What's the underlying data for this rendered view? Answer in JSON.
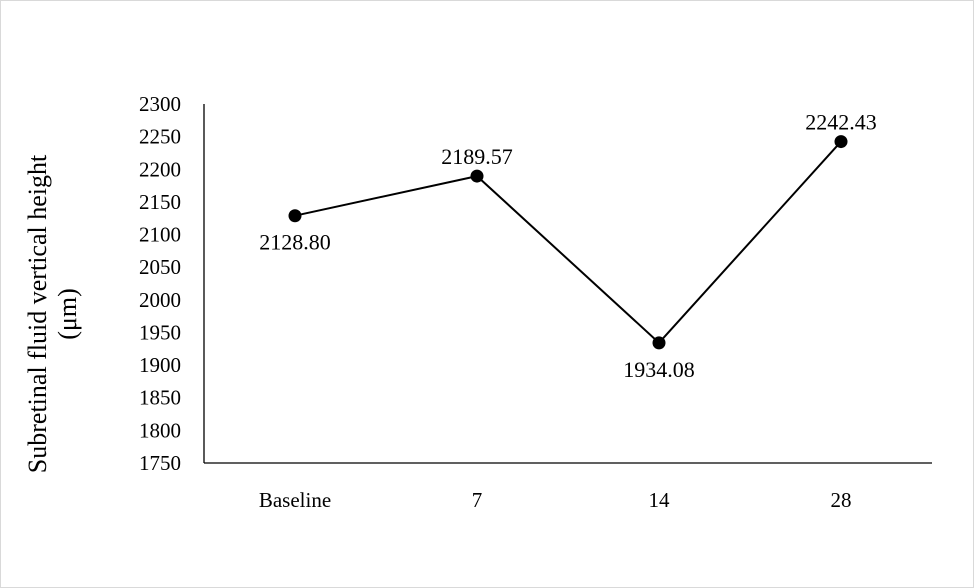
{
  "chart_data": {
    "type": "line",
    "title": "",
    "xlabel": "",
    "ylabel_lines": [
      "Subretinal fluid vertical height",
      "(μm)"
    ],
    "categories": [
      "Baseline",
      "7",
      "14",
      "28"
    ],
    "series": [
      {
        "values": [
          2128.8,
          2189.57,
          1934.08,
          2242.43
        ]
      }
    ],
    "data_labels": [
      "2128.80",
      "2189.57",
      "1934.08",
      "2242.43"
    ],
    "data_label_positions": [
      "below",
      "above",
      "below",
      "above"
    ],
    "ylim": [
      1750,
      2300
    ],
    "yticks": [
      1750,
      1800,
      1850,
      1900,
      1950,
      2000,
      2050,
      2100,
      2150,
      2200,
      2250,
      2300
    ],
    "grid": false,
    "legend": "none",
    "colors": {
      "line": "#000000",
      "marker": "#000000",
      "axis": "#000000"
    }
  }
}
